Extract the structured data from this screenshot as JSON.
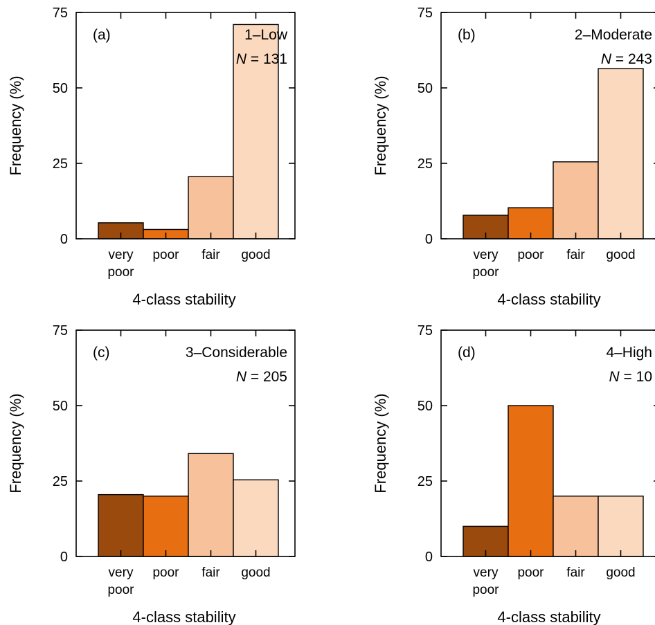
{
  "chart_data": [
    {
      "type": "bar",
      "panel_label": "(a)",
      "title": "1–Low",
      "n_label": "N",
      "n_value": "= 131",
      "xlabel": "4-class stability",
      "ylabel": "Frequency (%)",
      "ylim": [
        0,
        75
      ],
      "yticks": [
        0,
        25,
        50,
        75
      ],
      "categories": [
        [
          "very",
          "poor"
        ],
        [
          "poor"
        ],
        [
          "fair"
        ],
        [
          "good"
        ]
      ],
      "values": [
        5.3,
        3.1,
        20.6,
        71.0
      ],
      "colors": [
        "#9b4a0d",
        "#e86e12",
        "#f7c29b",
        "#fbd9bf"
      ],
      "grid": false,
      "legend": "none"
    },
    {
      "type": "bar",
      "panel_label": "(b)",
      "title": "2–Moderate",
      "n_label": "N",
      "n_value": "= 243",
      "xlabel": "4-class stability",
      "ylabel": "Frequency (%)",
      "ylim": [
        0,
        75
      ],
      "yticks": [
        0,
        25,
        50,
        75
      ],
      "categories": [
        [
          "very",
          "poor"
        ],
        [
          "poor"
        ],
        [
          "fair"
        ],
        [
          "good"
        ]
      ],
      "values": [
        7.8,
        10.3,
        25.5,
        56.4
      ],
      "colors": [
        "#9b4a0d",
        "#e86e12",
        "#f7c29b",
        "#fbd9bf"
      ],
      "grid": false,
      "legend": "none"
    },
    {
      "type": "bar",
      "panel_label": "(c)",
      "title": "3–Considerable",
      "n_label": "N",
      "n_value": "= 205",
      "xlabel": "4-class stability",
      "ylabel": "Frequency (%)",
      "ylim": [
        0,
        75
      ],
      "yticks": [
        0,
        25,
        50,
        75
      ],
      "categories": [
        [
          "very",
          "poor"
        ],
        [
          "poor"
        ],
        [
          "fair"
        ],
        [
          "good"
        ]
      ],
      "values": [
        20.5,
        20.0,
        34.1,
        25.4
      ],
      "colors": [
        "#9b4a0d",
        "#e86e12",
        "#f7c29b",
        "#fbd9bf"
      ],
      "grid": false,
      "legend": "none"
    },
    {
      "type": "bar",
      "panel_label": "(d)",
      "title": "4–High",
      "n_label": "N",
      "n_value": "= 10",
      "xlabel": "4-class stability",
      "ylabel": "Frequency (%)",
      "ylim": [
        0,
        75
      ],
      "yticks": [
        0,
        25,
        50,
        75
      ],
      "categories": [
        [
          "very",
          "poor"
        ],
        [
          "poor"
        ],
        [
          "fair"
        ],
        [
          "good"
        ]
      ],
      "values": [
        10,
        50,
        20,
        20
      ],
      "colors": [
        "#9b4a0d",
        "#e86e12",
        "#f7c29b",
        "#fbd9bf"
      ],
      "grid": false,
      "legend": "none"
    }
  ]
}
